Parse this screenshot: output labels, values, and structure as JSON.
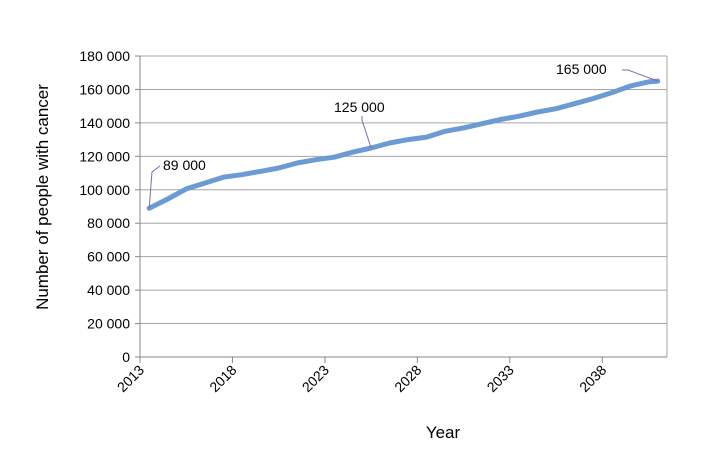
{
  "chart_data": {
    "type": "line",
    "title": "",
    "xlabel": "Year",
    "ylabel": "Number of people with cancer",
    "xlim": [
      2013,
      2041.5
    ],
    "ylim": [
      0,
      180000
    ],
    "x_ticks": [
      2013,
      2018,
      2023,
      2028,
      2033,
      2038
    ],
    "x_tick_labels": [
      "2013",
      "2018",
      "2023",
      "2028",
      "2033",
      "2038"
    ],
    "y_ticks": [
      0,
      20000,
      40000,
      60000,
      80000,
      100000,
      120000,
      140000,
      160000,
      180000
    ],
    "y_tick_labels": [
      "0",
      "20 000",
      "40 000",
      "60 000",
      "80 000",
      "100 000",
      "120 000",
      "140 000",
      "160 000",
      "180 000"
    ],
    "grid": "horizontal",
    "series": [
      {
        "color": "#6b9bd2",
        "x": [
          2013.5,
          2014.5,
          2015.5,
          2016.5,
          2017.5,
          2018.5,
          2019.5,
          2020.5,
          2021.5,
          2022.5,
          2023.5,
          2024.5,
          2025.5,
          2026.5,
          2027.5,
          2028.5,
          2029.5,
          2030.5,
          2031.5,
          2032.5,
          2033.5,
          2034.5,
          2035.5,
          2036.5,
          2037.5,
          2038.5,
          2039.5,
          2040.5,
          2041.0
        ],
        "y": [
          89000,
          94500,
          100500,
          104000,
          107500,
          109000,
          111000,
          113000,
          116000,
          118000,
          119500,
          122500,
          125000,
          128000,
          130000,
          131500,
          135000,
          137000,
          139500,
          142000,
          144000,
          146500,
          148500,
          151500,
          154500,
          158000,
          162000,
          164500,
          165000
        ]
      }
    ],
    "annotations": [
      {
        "text": "89 000",
        "x": 2013.5,
        "y": 89000
      },
      {
        "text": "125 000",
        "x": 2025.5,
        "y": 125000
      },
      {
        "text": "165 000",
        "x": 2041.0,
        "y": 165000
      }
    ]
  }
}
